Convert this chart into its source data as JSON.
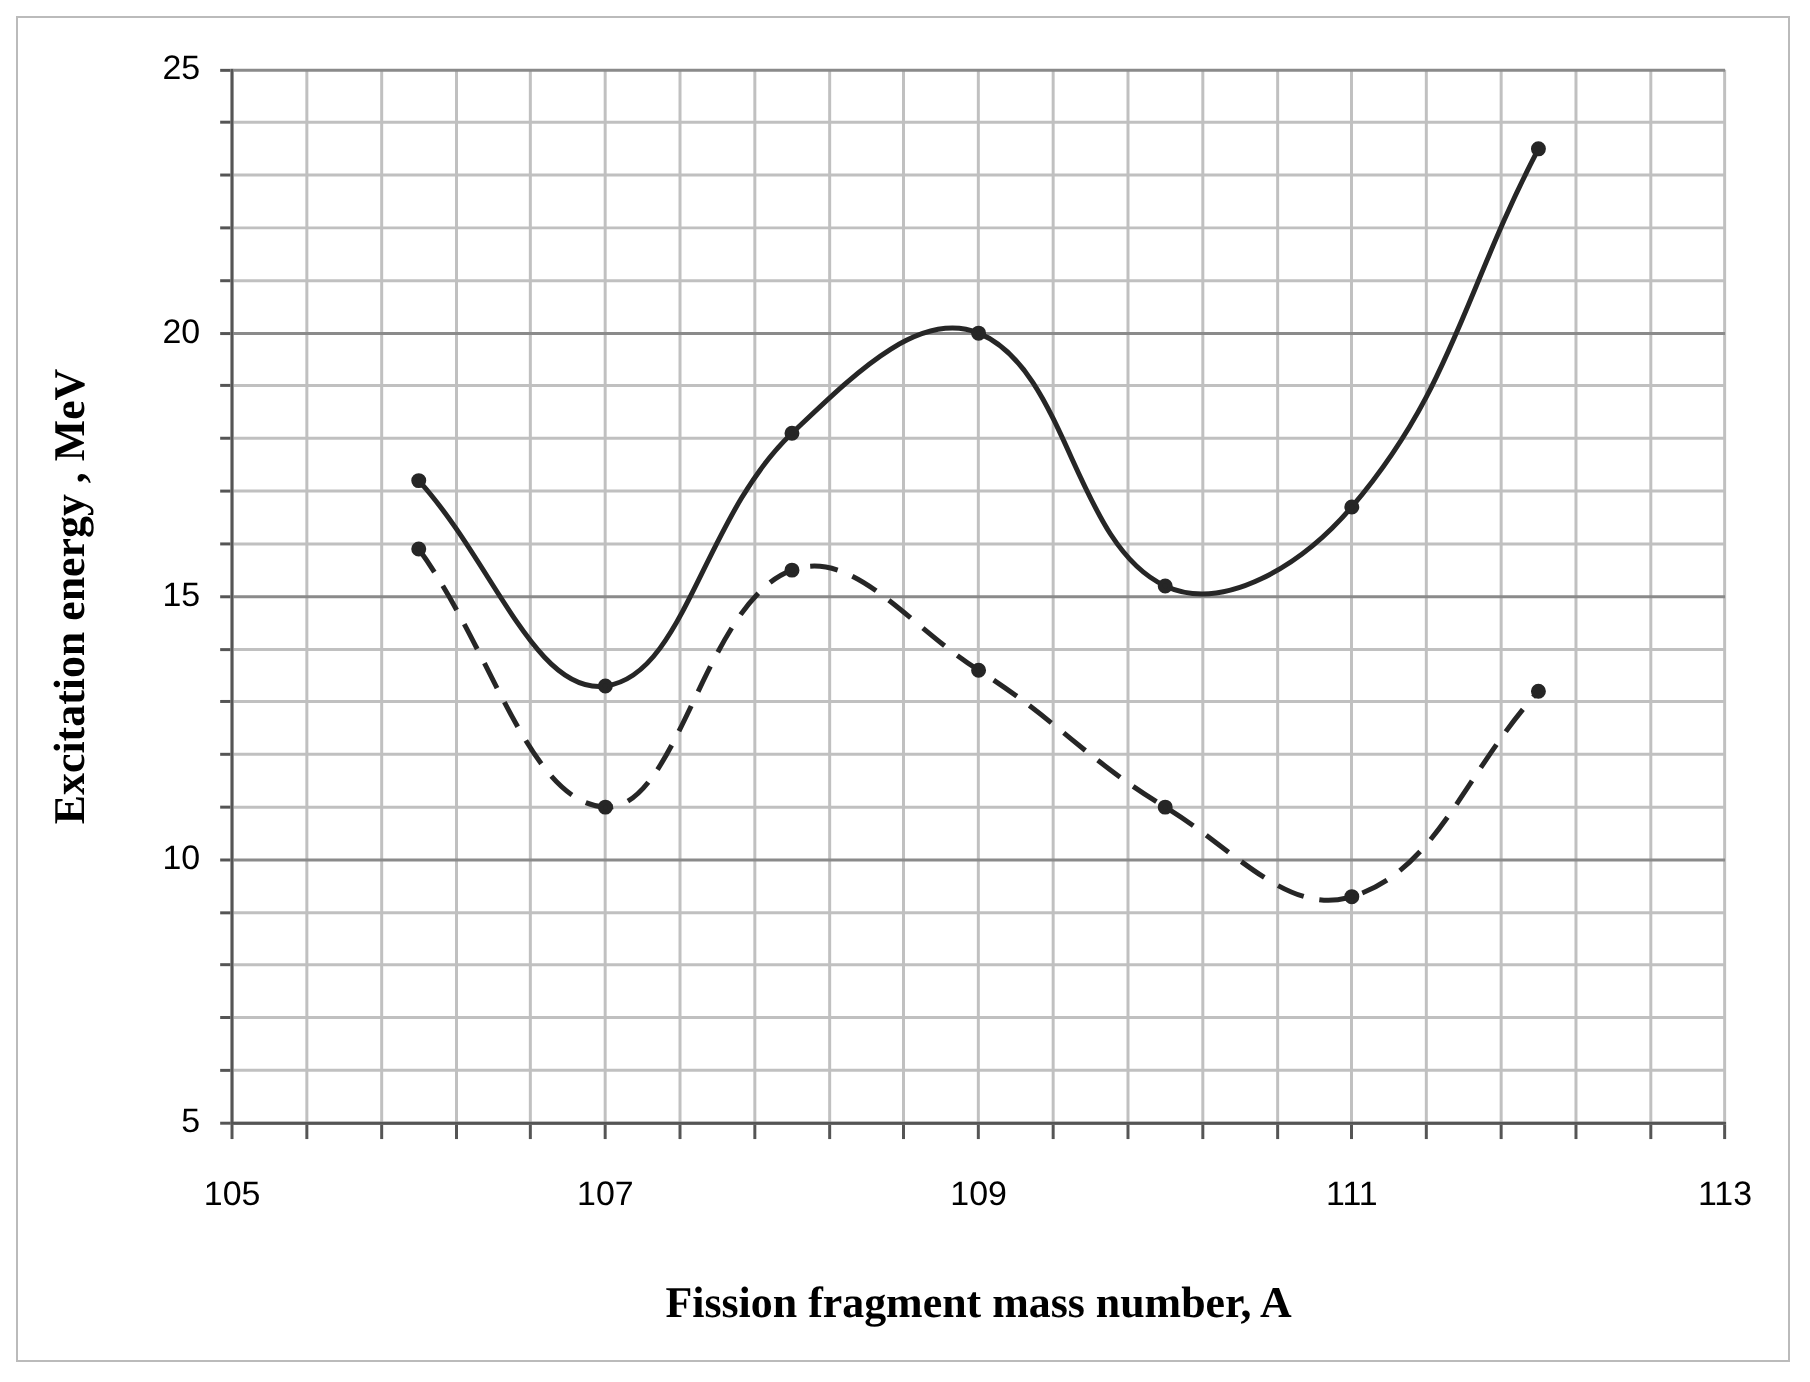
{
  "chart_data": {
    "type": "line",
    "xlabel": "Fission fragment mass number, A",
    "ylabel": "Excitation energy , MeV",
    "x": [
      106,
      107,
      108,
      109,
      110,
      111,
      112
    ],
    "series": [
      {
        "color": "#262626",
        "line_style": "solid",
        "values": [
          17.2,
          13.3,
          18.1,
          20.0,
          15.2,
          16.7,
          23.5
        ]
      },
      {
        "color": "#262626",
        "line_style": "dashed",
        "values": [
          15.9,
          11.0,
          15.5,
          13.6,
          11.0,
          9.3,
          13.2
        ]
      }
    ],
    "xlim": [
      105,
      113
    ],
    "xticks": [
      105,
      {
        "value": 105.4,
        "label": null
      },
      {
        "value": 105.8,
        "label": null
      },
      {
        "value": 106.2,
        "label": null
      },
      {
        "value": 106.6,
        "label": null
      },
      107,
      {
        "value": 107.4,
        "label": null
      },
      {
        "value": 107.8,
        "label": null
      },
      {
        "value": 108.2,
        "label": null
      },
      {
        "value": 108.6,
        "label": null
      },
      109,
      {
        "value": 109.4,
        "label": null
      },
      {
        "value": 109.8,
        "label": null
      },
      {
        "value": 110.2,
        "label": null
      },
      {
        "value": 110.6,
        "label": null
      },
      111,
      {
        "value": 111.4,
        "label": null
      },
      {
        "value": 111.8,
        "label": null
      },
      {
        "value": 112.2,
        "label": null
      },
      {
        "value": 112.6,
        "label": null
      },
      113
    ],
    "ylim": [
      5,
      25
    ],
    "yticks": [
      5,
      {
        "value": 6,
        "label": null
      },
      {
        "value": 7,
        "label": null
      },
      {
        "value": 8,
        "label": null
      },
      {
        "value": 9,
        "label": null
      },
      10,
      {
        "value": 11,
        "label": null
      },
      {
        "value": 12,
        "label": null
      },
      {
        "value": 13,
        "label": null
      },
      {
        "value": 14,
        "label": null
      },
      15,
      {
        "value": 16,
        "label": null
      },
      {
        "value": 17,
        "label": null
      },
      {
        "value": 18,
        "label": null
      },
      {
        "value": 19,
        "label": null
      },
      20,
      {
        "value": 21,
        "label": null
      },
      {
        "value": 22,
        "label": null
      },
      {
        "value": 23,
        "label": null
      },
      {
        "value": 24,
        "label": null
      },
      25
    ],
    "grid": true,
    "marker": "circle",
    "legend": false
  }
}
